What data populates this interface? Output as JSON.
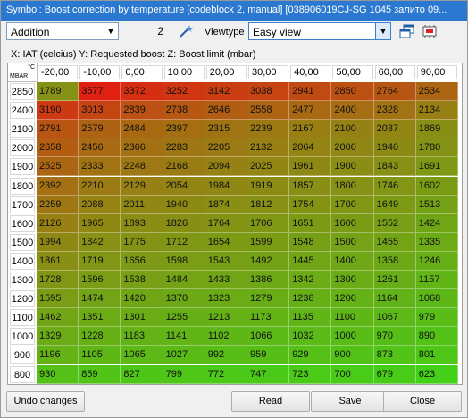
{
  "window": {
    "title": "Symbol: Boost correction by temperature [codeblock 2, manual] [038906019CJ-SG  1045 залито 09..."
  },
  "toolbar": {
    "mode_value": "Addition",
    "step_value": "2",
    "viewtype_label": "Viewtype",
    "viewtype_value": "Easy view"
  },
  "axis_description": "X: IAT (celcius) Y: Requested boost Z: Boost limit (mbar)",
  "table": {
    "corner_unit_top": "°C",
    "corner_unit_bottom": "MBAR",
    "columns": [
      "-20,00",
      "-10,00",
      "0,00",
      "10,00",
      "20,00",
      "30,00",
      "40,00",
      "50,00",
      "60,00",
      "90,00"
    ],
    "rows": [
      "2850",
      "2400",
      "2100",
      "2000",
      "1900",
      "1800",
      "1700",
      "1600",
      "1500",
      "1400",
      "1300",
      "1200",
      "1100",
      "1000",
      "900",
      "800"
    ],
    "values": [
      [
        "1789",
        "3577",
        "3372",
        "3252",
        "3142",
        "3038",
        "2941",
        "2850",
        "2764",
        "2534"
      ],
      [
        "3190",
        "3013",
        "2839",
        "2738",
        "2646",
        "2558",
        "2477",
        "2400",
        "2328",
        "2134"
      ],
      [
        "2791",
        "2579",
        "2484",
        "2397",
        "2315",
        "2239",
        "2167",
        "2100",
        "2037",
        "1869"
      ],
      [
        "2658",
        "2456",
        "2366",
        "2283",
        "2205",
        "2132",
        "2064",
        "2000",
        "1940",
        "1780"
      ],
      [
        "2525",
        "2333",
        "2248",
        "2168",
        "2094",
        "2025",
        "1961",
        "1900",
        "1843",
        "1691"
      ],
      [
        "2392",
        "2210",
        "2129",
        "2054",
        "1984",
        "1919",
        "1857",
        "1800",
        "1746",
        "1602"
      ],
      [
        "2259",
        "2088",
        "2011",
        "1940",
        "1874",
        "1812",
        "1754",
        "1700",
        "1649",
        "1513"
      ],
      [
        "2126",
        "1965",
        "1893",
        "1826",
        "1764",
        "1706",
        "1651",
        "1600",
        "1552",
        "1424"
      ],
      [
        "1994",
        "1842",
        "1775",
        "1712",
        "1654",
        "1599",
        "1548",
        "1500",
        "1455",
        "1335"
      ],
      [
        "1861",
        "1719",
        "1656",
        "1598",
        "1543",
        "1492",
        "1445",
        "1400",
        "1358",
        "1246"
      ],
      [
        "1728",
        "1596",
        "1538",
        "1484",
        "1433",
        "1386",
        "1342",
        "1300",
        "1261",
        "1157"
      ],
      [
        "1595",
        "1474",
        "1420",
        "1370",
        "1323",
        "1279",
        "1238",
        "1200",
        "1164",
        "1068"
      ],
      [
        "1462",
        "1351",
        "1301",
        "1255",
        "1213",
        "1173",
        "1135",
        "1100",
        "1067",
        "979"
      ],
      [
        "1329",
        "1228",
        "1183",
        "1141",
        "1102",
        "1066",
        "1032",
        "1000",
        "970",
        "890"
      ],
      [
        "1196",
        "1105",
        "1065",
        "1027",
        "992",
        "959",
        "929",
        "900",
        "873",
        "801"
      ],
      [
        "930",
        "859",
        "827",
        "799",
        "772",
        "747",
        "723",
        "700",
        "679",
        "623"
      ]
    ]
  },
  "buttons": {
    "undo": "Undo changes",
    "read": "Read",
    "save": "Save",
    "close": "Close"
  },
  "icons": {
    "wand": "magic-wand-icon",
    "windows": "windows-icon",
    "chip": "chip-icon"
  },
  "colors": {
    "title_bar": "#2b78d0",
    "high": "#e02010",
    "low": "#44d018"
  }
}
